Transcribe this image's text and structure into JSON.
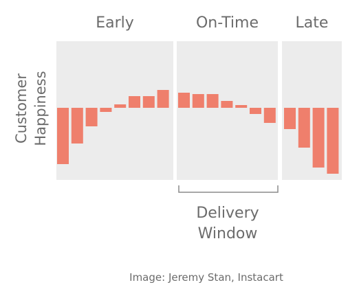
{
  "chart_data": {
    "type": "bar",
    "segments": [
      {
        "label": "Early",
        "values": [
          -82,
          -52,
          -27,
          -6,
          5,
          17,
          17,
          26
        ]
      },
      {
        "label": "On-Time",
        "values": [
          22,
          20,
          20,
          10,
          4,
          -9,
          -22
        ]
      },
      {
        "label": "Late",
        "values": [
          -31,
          -58,
          -87,
          -96
        ]
      }
    ],
    "ylabel": [
      "Customer",
      "Happiness"
    ],
    "annotation": [
      "Delivery",
      "Window"
    ],
    "colors": {
      "bar": "#ef7f6c",
      "panel": "#ececec",
      "text": "#6b6b6b"
    },
    "grid": false
  },
  "caption": "Image: Jeremy Stan, Instacart"
}
